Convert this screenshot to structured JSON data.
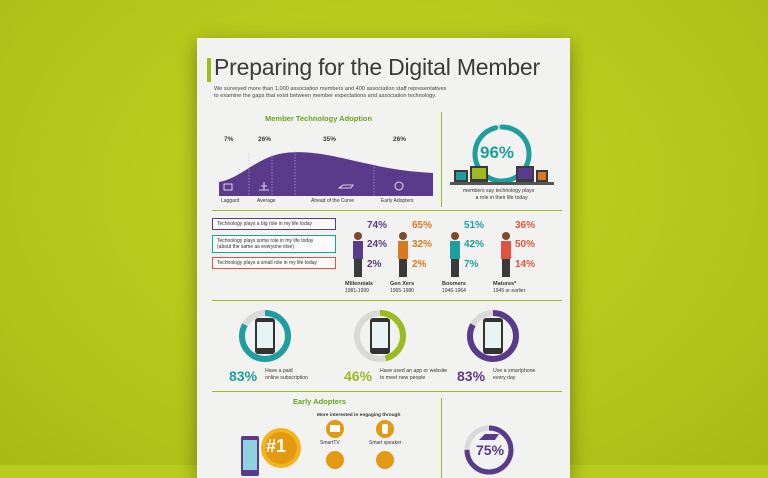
{
  "header": {
    "title": "Preparing for the Digital Member",
    "subtitle_line1": "We surveyed more than 1,000 association members and 400 association staff representatives",
    "subtitle_line2": "to examine the gaps that exist between member expectations and association technology."
  },
  "adoption": {
    "title": "Member Technology Adoption",
    "segments": [
      {
        "pct": "7%",
        "label": "Laggard"
      },
      {
        "pct": "26%",
        "label": "Average"
      },
      {
        "pct": "35%",
        "label": "Ahead of the Curve"
      },
      {
        "pct": "26%",
        "label": "Early Adopters"
      }
    ]
  },
  "role_stat": {
    "pct": "96%",
    "desc_line1": "members say technology plays",
    "desc_line2": "a role in their life today"
  },
  "statements": [
    {
      "line1": "Technology plays a big role in my life today",
      "line2": ""
    },
    {
      "line1": "Technology plays some role in my life today",
      "line2": "(about the same as everyone else)"
    },
    {
      "line1": "Technology plays a small role in my life today",
      "line2": ""
    }
  ],
  "generations": [
    {
      "name": "Millennials",
      "years": "1981-1999",
      "values": [
        "74%",
        "24%",
        "2%"
      ],
      "color": "#5a3a8a"
    },
    {
      "name": "Gen Xers",
      "years": "1965-1980",
      "values": [
        "65%",
        "32%",
        "2%"
      ],
      "color": "#d97a1e"
    },
    {
      "name": "Boomers",
      "years": "1946-1964",
      "values": [
        "51%",
        "42%",
        "7%"
      ],
      "color": "#1e9e9e"
    },
    {
      "name": "Matures*",
      "years": "1945 or earlier",
      "values": [
        "36%",
        "50%",
        "14%"
      ],
      "color": "#e2533f"
    }
  ],
  "phone_stats": [
    {
      "pct": "83%",
      "line1": "Have a paid",
      "line2": "online subscription",
      "color": "#1e9e9e",
      "fraction": 0.83
    },
    {
      "pct": "46%",
      "line1": "Have used an app or website",
      "line2": "to meet new people",
      "color": "#9bbb1e",
      "fraction": 0.46
    },
    {
      "pct": "83%",
      "line1": "Use a smartphone",
      "line2": "every day",
      "color": "#5a3a8a",
      "fraction": 0.83
    }
  ],
  "early_adopters": {
    "title": "Early Adopters",
    "interested_label": "More interested in engaging through",
    "badge": "#1",
    "devices": [
      "SmartTV",
      "Smart speaker"
    ],
    "stat_pct": "75%",
    "stat_fraction": 0.75
  },
  "colors": {
    "purple": "#5a3a8a",
    "teal": "#1e9e9e",
    "green": "#9bbb1e",
    "orange": "#d97a1e",
    "red": "#e2533f"
  }
}
